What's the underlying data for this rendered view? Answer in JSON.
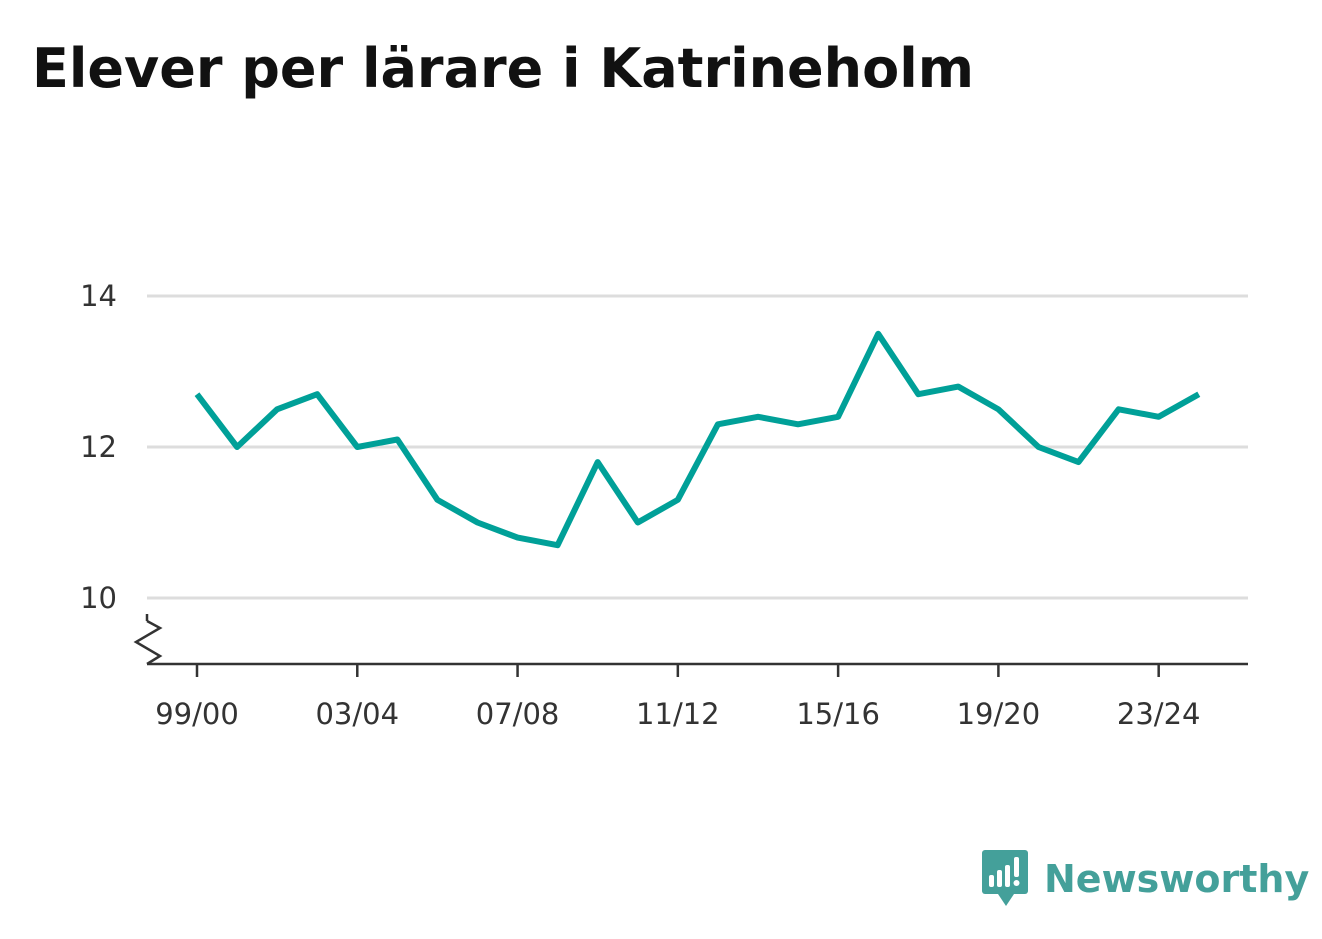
{
  "title": "Elever per lärare i Katrineholm",
  "chart_data": {
    "type": "line",
    "title": "Elever per lärare i Katrineholm",
    "xlabel": "",
    "ylabel": "",
    "x": [
      "99/00",
      "00/01",
      "01/02",
      "02/03",
      "03/04",
      "04/05",
      "05/06",
      "06/07",
      "07/08",
      "08/09",
      "09/10",
      "10/11",
      "11/12",
      "12/13",
      "13/14",
      "14/15",
      "15/16",
      "16/17",
      "17/18",
      "18/19",
      "19/20",
      "20/21",
      "21/22",
      "22/23",
      "23/24",
      "24/25"
    ],
    "x_tick_labels": [
      "99/00",
      "03/04",
      "07/08",
      "11/12",
      "15/16",
      "19/20",
      "23/24"
    ],
    "y_ticks": [
      10,
      12,
      14
    ],
    "ylim": [
      9.1,
      14.3
    ],
    "axis_break": true,
    "grid": true,
    "series": [
      {
        "values": [
          12.7,
          12.0,
          12.5,
          12.7,
          12.0,
          12.1,
          11.3,
          11.0,
          10.8,
          10.7,
          11.8,
          11.0,
          11.3,
          12.3,
          12.4,
          12.3,
          12.4,
          13.5,
          12.7,
          12.8,
          12.5,
          12.0,
          11.8,
          12.5,
          12.4,
          12.7
        ],
        "color": "#00a098"
      }
    ]
  },
  "brand": {
    "name": "Newsworthy",
    "icon": "newsworthy-logo-icon",
    "color": "#44a09a"
  }
}
